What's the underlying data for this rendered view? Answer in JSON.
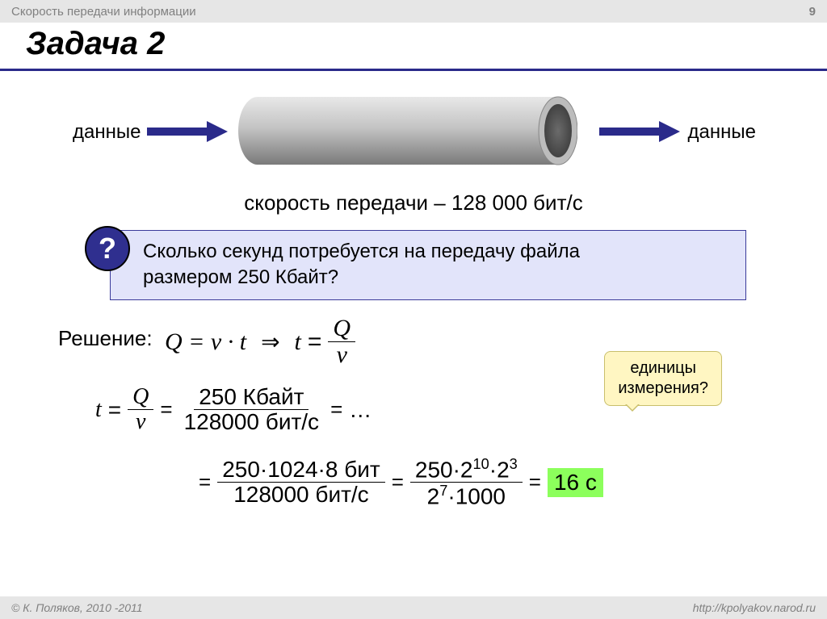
{
  "header": {
    "breadcrumb": "Скорость передачи информации",
    "page_number": "9"
  },
  "title": "Задача 2",
  "diagram": {
    "left_label": "данные",
    "right_label": "данные",
    "arrow_color": "#2a2a8a",
    "pipe_color_top": "#d7d7d7",
    "pipe_color_bottom": "#8d8d8d"
  },
  "speed_line": "скорость передачи – 128 000 бит/с",
  "question": {
    "badge": "?",
    "text_l1": "Сколько секунд потребуется на передачу файла",
    "text_l2": "размером 250 Кбайт?",
    "bg": "#e2e4fa",
    "badge_bg": "#2f2f8f"
  },
  "solution": {
    "label": "Решение:",
    "f1_left": "Q = v · t",
    "f1_tnum": "Q",
    "f1_tden": "v",
    "row1_num": "250 Кбайт",
    "row1_den": "128000 бит/с",
    "row2a_num": "250·1024·8 бит",
    "row2a_den": "128000 бит/с",
    "row2b_num_html": "250·2<sup>10</sup>·2<sup>3</sup>",
    "row2b_den_html": "2<sup>7</sup>·1000",
    "answer": "16 с",
    "answer_bg": "#8cff5c",
    "ellipsis": "…"
  },
  "callout": {
    "l1": "единицы",
    "l2": "измерения?",
    "bg": "#fff6c2"
  },
  "footer": {
    "copyright": "© К. Поляков, 2010 -2011",
    "url": "http://kpolyakov.narod.ru"
  }
}
